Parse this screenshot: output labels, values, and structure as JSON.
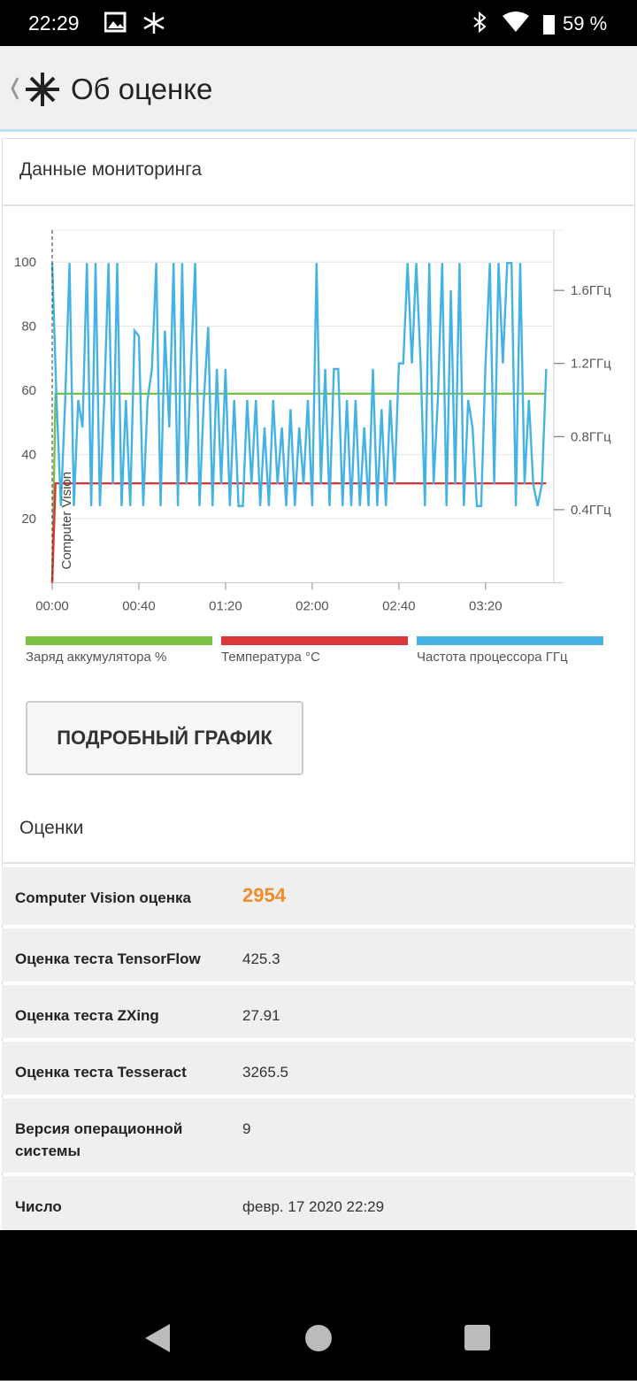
{
  "status_bar": {
    "time": "22:29",
    "battery": "59 %"
  },
  "header": {
    "title": "Об оценке"
  },
  "monitoring": {
    "title": "Данные мониторинга",
    "button": "ПОДРОБНЫЙ ГРАФИК",
    "chart": {
      "type": "line",
      "annotation": "Computer Vision",
      "grid": true,
      "xlim": [
        0,
        236
      ],
      "xticks": [
        {
          "value": 0,
          "label": "00:00"
        },
        {
          "value": 40,
          "label": "00:40"
        },
        {
          "value": 80,
          "label": "01:20"
        },
        {
          "value": 120,
          "label": "02:00"
        },
        {
          "value": 160,
          "label": "02:40"
        },
        {
          "value": 200,
          "label": "03:20"
        }
      ],
      "ylim": [
        0,
        110
      ],
      "yticks": [
        20,
        40,
        60,
        80,
        100
      ],
      "y2lim": [
        0,
        1.93
      ],
      "y2ticks": [
        {
          "value": 0.4,
          "label": "0.4ГГц"
        },
        {
          "value": 0.8,
          "label": "0.8ГГц"
        },
        {
          "value": 1.2,
          "label": "1.2ГГц"
        },
        {
          "value": 1.6,
          "label": "1.6ГГц"
        }
      ],
      "series": [
        {
          "name": "Заряд аккумулятора %",
          "color": "#7cc142",
          "x": [
            0,
            1.5,
            228
          ],
          "values": [
            0,
            59,
            59
          ]
        },
        {
          "name": "Температура °C",
          "color": "#d9383a",
          "x": [
            0,
            1.5,
            228
          ],
          "values": [
            0,
            31,
            31
          ]
        },
        {
          "name": "Частота процессора ГГц",
          "color": "#44b3e4",
          "axis": "y2",
          "x": [
            0,
            2,
            4,
            6,
            8,
            10,
            12,
            14,
            16,
            18,
            20,
            22,
            24,
            26,
            28,
            30,
            32,
            34,
            36,
            38,
            40,
            42,
            44,
            46,
            48,
            50,
            52,
            54,
            56,
            58,
            60,
            62,
            64,
            66,
            68,
            70,
            72,
            74,
            76,
            78,
            80,
            82,
            84,
            86,
            88,
            90,
            92,
            94,
            96,
            98,
            100,
            102,
            104,
            106,
            108,
            110,
            112,
            114,
            116,
            118,
            120,
            122,
            124,
            126,
            128,
            130,
            132,
            134,
            136,
            138,
            140,
            142,
            144,
            146,
            148,
            150,
            152,
            154,
            156,
            158,
            160,
            162,
            164,
            166,
            168,
            170,
            172,
            174,
            176,
            178,
            180,
            182,
            184,
            186,
            188,
            190,
            192,
            194,
            196,
            198,
            200,
            202,
            204,
            206,
            208,
            210,
            212,
            214,
            216,
            218,
            220,
            222,
            224,
            226,
            228
          ],
          "values": [
            1.75,
            1.0,
            0.42,
            1.0,
            1.75,
            0.42,
            1.0,
            0.85,
            1.75,
            0.42,
            1.75,
            0.42,
            1.0,
            1.75,
            0.54,
            1.75,
            0.42,
            1.0,
            0.42,
            1.38,
            1.35,
            0.42,
            1.0,
            1.17,
            1.75,
            0.42,
            1.38,
            0.85,
            1.75,
            0.42,
            1.75,
            0.54,
            1.17,
            1.75,
            0.42,
            1.0,
            1.4,
            0.42,
            1.17,
            0.54,
            1.17,
            0.42,
            1.0,
            0.42,
            0.42,
            1.0,
            0.54,
            1.0,
            0.42,
            0.85,
            0.42,
            1.0,
            0.54,
            0.85,
            0.42,
            0.95,
            0.42,
            0.85,
            0.54,
            1.0,
            0.42,
            1.75,
            0.54,
            1.17,
            0.42,
            1.17,
            1.17,
            0.42,
            1.0,
            0.42,
            1.0,
            0.42,
            0.85,
            0.42,
            1.17,
            0.42,
            0.95,
            0.42,
            1.0,
            0.54,
            1.2,
            1.2,
            1.75,
            1.2,
            1.75,
            1.2,
            0.42,
            1.75,
            0.54,
            1.0,
            1.75,
            0.42,
            1.6,
            0.54,
            1.75,
            0.42,
            1.0,
            0.85,
            0.42,
            0.42,
            1.2,
            1.75,
            0.54,
            1.75,
            1.2,
            1.75,
            1.75,
            0.42,
            1.75,
            0.54,
            1.0,
            0.54,
            0.42,
            0.54,
            1.17
          ]
        }
      ]
    }
  },
  "scores": {
    "title": "Оценки",
    "rows": [
      [
        "Computer Vision оценка",
        "2954"
      ],
      [
        "Оценка теста TensorFlow",
        "425.3"
      ],
      [
        "Оценка теста ZXing",
        "27.91"
      ],
      [
        "Оценка теста Tesseract",
        "3265.5"
      ],
      [
        "Версия операционной системы",
        "9"
      ],
      [
        "Число",
        "февр. 17 2020 22:29"
      ]
    ]
  }
}
